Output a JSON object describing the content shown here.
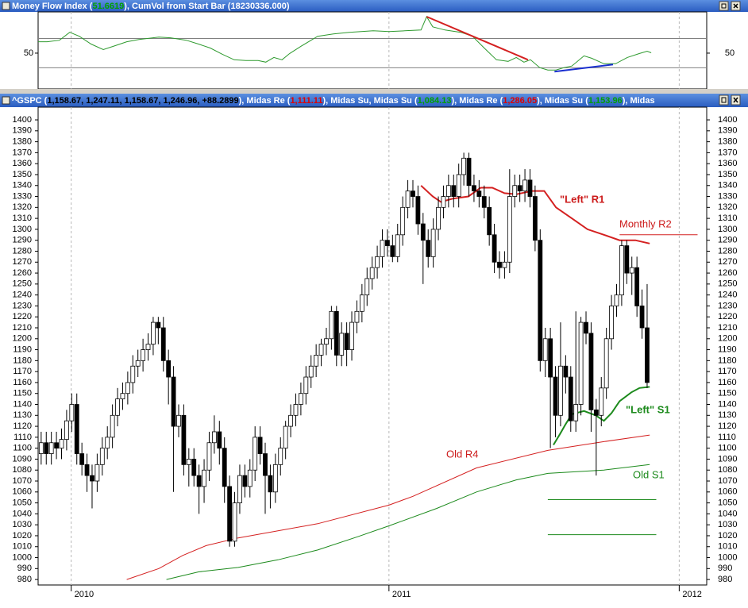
{
  "chart_data": [
    {
      "type": "line",
      "title_parts": [
        {
          "text": "Money Flow Index (",
          "color": "#ffffff"
        },
        {
          "text": "51.6619",
          "color": "#00a000"
        },
        {
          "text": "), CumVol from Start Bar (18230336.000)",
          "color": "#ffffff"
        }
      ],
      "xlim": [
        -0.6,
        130.7
      ],
      "ylim": [
        1,
        106.5
      ],
      "yticks": [
        50
      ],
      "levels": [
        70,
        30
      ],
      "series": [
        {
          "color": "#2e9a2e",
          "x": [
            -0.6,
            1.2,
            3.6,
            5.6,
            7.5,
            9.8,
            12.2,
            14.5,
            16.8,
            19.2,
            23.1,
            25.4,
            28.5,
            30.9,
            33.2,
            35.6,
            37.9,
            40.2,
            42.6,
            44.1,
            45.7,
            47.3,
            48.8,
            51.2,
            54.3,
            57.4,
            60.5,
            65.2,
            68.3,
            71.4,
            74.6,
            75.7,
            76.9,
            79.3,
            82.4,
            84.7,
            87.0,
            89.4,
            91.7,
            93.3,
            94.8,
            96.1,
            97.9,
            99.5,
            101.1,
            102.7,
            104.2,
            106.6,
            108.1,
            110.5,
            112.8,
            115.1,
            117.5,
            119.0,
            119.8
          ],
          "values": [
            65.6,
            65.6,
            67.7,
            78.5,
            73.1,
            62.4,
            54.8,
            60.2,
            65.6,
            68.8,
            72.0,
            71.0,
            67.7,
            62.4,
            57.0,
            48.4,
            40.9,
            39.8,
            39.8,
            37.6,
            44.1,
            40.9,
            49.5,
            60.2,
            73.1,
            76.3,
            78.5,
            80.6,
            79.6,
            80.6,
            81.7,
            100,
            86.0,
            81.7,
            78.5,
            73.1,
            57.0,
            40.9,
            38.7,
            44.1,
            37.6,
            40.9,
            30.1,
            26.9,
            26.9,
            30.1,
            32.3,
            46.2,
            43.0,
            35.5,
            35.5,
            44.1,
            49.5,
            52.7,
            50.5
          ]
        }
      ],
      "trendlines": [
        {
          "color": "#d42020",
          "x": [
            75.7,
            95.6
          ],
          "values": [
            100,
            40.9
          ]
        },
        {
          "color": "#1a2fd0",
          "x": [
            100.8,
            112.3
          ],
          "values": [
            24.7,
            34.4
          ]
        }
      ]
    },
    {
      "type": "candlestick",
      "title_parts": [
        {
          "text": "^GSPC (",
          "color": "#ffffff"
        },
        {
          "text": "1,158.67, 1,247.11, 1,158.67, 1,246.96, +88.2899",
          "color": "#000000"
        },
        {
          "text": "), Midas Re (",
          "color": "#ffffff"
        },
        {
          "text": "1,111.11",
          "color": "#e00000"
        },
        {
          "text": "), Midas Su, Midas Su (",
          "color": "#ffffff"
        },
        {
          "text": "1,084.13",
          "color": "#00a000"
        },
        {
          "text": "), Midas Re (",
          "color": "#ffffff"
        },
        {
          "text": "1,286.05",
          "color": "#e00000"
        },
        {
          "text": "), Midas Su (",
          "color": "#ffffff"
        },
        {
          "text": "1,153.96",
          "color": "#00a000"
        },
        {
          "text": "), Midas",
          "color": "#ffffff"
        }
      ],
      "up_color": "#ffffff",
      "down_color": "#000000",
      "open": [
        1095,
        1105,
        1095,
        1105,
        1100,
        1108,
        1125,
        1140,
        1095,
        1085,
        1075,
        1070,
        1085,
        1100,
        1110,
        1130,
        1145,
        1150,
        1160,
        1175,
        1180,
        1190,
        1195,
        1215,
        1210,
        1180,
        1165,
        1120,
        1130,
        1085,
        1090,
        1075,
        1065,
        1080,
        1105,
        1115,
        1100,
        1065,
        1015,
        1050,
        1075,
        1065,
        1080,
        1110,
        1095,
        1075,
        1060,
        1085,
        1100,
        1120,
        1130,
        1140,
        1150,
        1165,
        1175,
        1185,
        1195,
        1200,
        1225,
        1185,
        1205,
        1190,
        1215,
        1225,
        1240,
        1255,
        1265,
        1275,
        1290,
        1285,
        1275,
        1295,
        1320,
        1335,
        1330,
        1305,
        1290,
        1275,
        1300,
        1320,
        1330,
        1340,
        1330,
        1350,
        1365,
        1340,
        1335,
        1330,
        1320,
        1295,
        1270,
        1265,
        1270,
        1330,
        1340,
        1335,
        1345,
        1330,
        1290,
        1180,
        1200,
        1165,
        1130,
        1175,
        1165,
        1125,
        1140,
        1215,
        1205,
        1135,
        1130,
        1155,
        1200,
        1230,
        1240,
        1285,
        1260,
        1265,
        1230,
        1210
      ],
      "high": [
        1115,
        1115,
        1115,
        1115,
        1118,
        1135,
        1150,
        1150,
        1105,
        1095,
        1085,
        1095,
        1110,
        1120,
        1140,
        1155,
        1160,
        1170,
        1185,
        1190,
        1200,
        1205,
        1220,
        1220,
        1220,
        1190,
        1175,
        1140,
        1140,
        1100,
        1100,
        1085,
        1090,
        1115,
        1130,
        1125,
        1110,
        1075,
        1060,
        1085,
        1085,
        1090,
        1120,
        1120,
        1105,
        1085,
        1095,
        1110,
        1125,
        1140,
        1150,
        1160,
        1175,
        1185,
        1195,
        1200,
        1210,
        1230,
        1230,
        1215,
        1215,
        1225,
        1235,
        1250,
        1265,
        1275,
        1285,
        1300,
        1300,
        1295,
        1305,
        1330,
        1345,
        1345,
        1340,
        1315,
        1300,
        1310,
        1330,
        1340,
        1350,
        1350,
        1360,
        1370,
        1370,
        1350,
        1345,
        1340,
        1330,
        1305,
        1280,
        1280,
        1355,
        1350,
        1350,
        1355,
        1355,
        1340,
        1300,
        1210,
        1210,
        1175,
        1215,
        1185,
        1175,
        1225,
        1220,
        1225,
        1215,
        1145,
        1165,
        1210,
        1240,
        1250,
        1290,
        1290,
        1275,
        1275,
        1245,
        1250
      ],
      "low": [
        1085,
        1085,
        1085,
        1090,
        1090,
        1098,
        1115,
        1085,
        1075,
        1060,
        1045,
        1060,
        1075,
        1090,
        1100,
        1120,
        1135,
        1140,
        1150,
        1165,
        1170,
        1180,
        1185,
        1195,
        1170,
        1140,
        1060,
        1110,
        1075,
        1065,
        1065,
        1040,
        1050,
        1070,
        1095,
        1085,
        1050,
        1010,
        1010,
        1040,
        1055,
        1055,
        1070,
        1085,
        1040,
        1045,
        1050,
        1075,
        1090,
        1110,
        1120,
        1130,
        1140,
        1155,
        1165,
        1175,
        1185,
        1190,
        1175,
        1175,
        1175,
        1180,
        1205,
        1215,
        1230,
        1245,
        1255,
        1265,
        1275,
        1270,
        1270,
        1285,
        1310,
        1320,
        1295,
        1250,
        1265,
        1265,
        1290,
        1310,
        1320,
        1320,
        1320,
        1340,
        1330,
        1325,
        1320,
        1310,
        1285,
        1260,
        1255,
        1255,
        1260,
        1320,
        1325,
        1325,
        1320,
        1280,
        1170,
        1165,
        1100,
        1110,
        1120,
        1150,
        1115,
        1115,
        1130,
        1195,
        1115,
        1075,
        1120,
        1145,
        1190,
        1220,
        1230,
        1250,
        1240,
        1220,
        1200,
        1155
      ],
      "close": [
        1105,
        1095,
        1105,
        1100,
        1108,
        1125,
        1140,
        1095,
        1085,
        1075,
        1070,
        1085,
        1100,
        1110,
        1130,
        1145,
        1150,
        1160,
        1175,
        1180,
        1190,
        1195,
        1215,
        1210,
        1180,
        1165,
        1120,
        1130,
        1085,
        1090,
        1075,
        1065,
        1080,
        1105,
        1115,
        1100,
        1065,
        1015,
        1050,
        1075,
        1065,
        1080,
        1110,
        1095,
        1075,
        1060,
        1085,
        1100,
        1120,
        1130,
        1140,
        1150,
        1165,
        1175,
        1185,
        1195,
        1200,
        1225,
        1185,
        1205,
        1190,
        1215,
        1225,
        1240,
        1255,
        1265,
        1275,
        1290,
        1285,
        1275,
        1295,
        1320,
        1335,
        1330,
        1305,
        1290,
        1275,
        1300,
        1320,
        1330,
        1340,
        1330,
        1350,
        1365,
        1340,
        1335,
        1330,
        1320,
        1295,
        1270,
        1265,
        1270,
        1330,
        1340,
        1335,
        1345,
        1330,
        1290,
        1180,
        1200,
        1165,
        1130,
        1175,
        1165,
        1125,
        1140,
        1215,
        1205,
        1135,
        1130,
        1155,
        1200,
        1230,
        1240,
        1285,
        1260,
        1265,
        1230,
        1210,
        1160
      ],
      "xlim": [
        -0.6,
        130.7
      ],
      "xticks": [
        {
          "value": 5.9,
          "label": "2010"
        },
        {
          "value": 68.3,
          "label": "2011"
        },
        {
          "value": 125.3,
          "label": "2012"
        }
      ],
      "ylim": [
        975,
        1408
      ],
      "yticks": [
        980,
        990,
        1000,
        1010,
        1020,
        1030,
        1040,
        1050,
        1060,
        1070,
        1080,
        1090,
        1100,
        1110,
        1120,
        1130,
        1140,
        1150,
        1160,
        1170,
        1180,
        1190,
        1200,
        1210,
        1220,
        1230,
        1240,
        1250,
        1260,
        1270,
        1280,
        1290,
        1300,
        1310,
        1320,
        1330,
        1340,
        1350,
        1360,
        1370,
        1380,
        1390,
        1400
      ],
      "lines": [
        {
          "color": "#d42020",
          "width": 2,
          "x": [
            74.6,
            76.9,
            78.5,
            80.8,
            83.9,
            86.3,
            88.6,
            91.0,
            93.3,
            96.4,
            98.8,
            101.1,
            104.2,
            107.3,
            110.5,
            113.6,
            116.7,
            119.5
          ],
          "values": [
            1340,
            1330,
            1325,
            1328,
            1330,
            1338,
            1338,
            1333,
            1332,
            1335,
            1335,
            1320,
            1310,
            1300,
            1295,
            1290,
            1290,
            1287
          ]
        },
        {
          "color": "#d42020",
          "width": 1,
          "x": [
            113.6,
            128.9
          ],
          "values": [
            1295,
            1295
          ]
        },
        {
          "color": "#d42020",
          "width": 1,
          "x": [
            16.8,
            23.1,
            27.8,
            32.4,
            38.7,
            54.3,
            68.3,
            73.0,
            85.5,
            99.5,
            110.5,
            119.5
          ],
          "values": [
            980,
            990,
            1002,
            1011,
            1018,
            1031,
            1048,
            1056,
            1082,
            1098,
            1106,
            1112
          ]
        },
        {
          "color": "#1c8a1c",
          "width": 1,
          "x": [
            24.6,
            30.9,
            38.7,
            46.5,
            54.3,
            62.1,
            68.3,
            77.7,
            85.5,
            93.3,
            99.5,
            110.5,
            119.5
          ],
          "values": [
            980,
            987,
            991,
            998,
            1007,
            1019,
            1029,
            1045,
            1060,
            1071,
            1077,
            1080,
            1085
          ]
        },
        {
          "color": "#1c8a1c",
          "width": 2,
          "x": [
            100.6,
            101.9,
            103.0,
            104.2,
            106.6,
            108.9,
            110.5,
            112.0,
            113.6,
            115.9,
            117.5,
            119.5
          ],
          "values": [
            1103,
            1113,
            1122,
            1131,
            1134,
            1130,
            1125,
            1132,
            1143,
            1151,
            1155,
            1156
          ]
        },
        {
          "color": "#1c8a1c",
          "width": 1,
          "x": [
            99.5,
            120.8
          ],
          "values": [
            1053,
            1053
          ]
        },
        {
          "color": "#1c8a1c",
          "width": 1,
          "x": [
            99.5,
            120.8
          ],
          "values": [
            1021,
            1021
          ]
        }
      ],
      "annotations": [
        {
          "text": "\"Left\" R1",
          "color": "#cc1a1a",
          "bold": true
        },
        {
          "text": "Monthly R2",
          "color": "#cc1a1a",
          "bold": false
        },
        {
          "text": "\"Left\" S1",
          "color": "#1c8a1c",
          "bold": true
        },
        {
          "text": "Old R4",
          "color": "#cc1a1a",
          "bold": false
        },
        {
          "text": "Old S1",
          "color": "#1c8a1c",
          "bold": false
        }
      ]
    }
  ]
}
